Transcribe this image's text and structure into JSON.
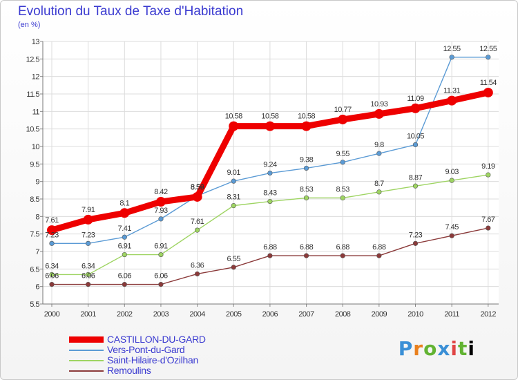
{
  "chart_data": {
    "type": "line",
    "title": "Evolution du Taux de Taxe d'Habitation",
    "ylabel": "(en %)",
    "xlabel": "",
    "x": [
      "2000",
      "2001",
      "2002",
      "2003",
      "2004",
      "2005",
      "2006",
      "2007",
      "2008",
      "2009",
      "2010",
      "2011",
      "2012"
    ],
    "ylim": [
      5.5,
      13
    ],
    "yticks": [
      "5.5",
      "6",
      "6.5",
      "7",
      "7.5",
      "8",
      "8.5",
      "9",
      "9.5",
      "10",
      "10.5",
      "11",
      "11.5",
      "12",
      "12.5",
      "13"
    ],
    "grid": true,
    "legend_position": "bottom-left",
    "series": [
      {
        "name": "CASTILLON-DU-GARD",
        "color": "#ee0000",
        "values": [
          7.61,
          7.91,
          8.1,
          8.42,
          8.56,
          10.58,
          10.58,
          10.58,
          10.77,
          10.93,
          11.09,
          11.31,
          11.54
        ],
        "labels": [
          "7.61",
          "7.91",
          "8.1",
          "8.42",
          "8.56",
          "10.58",
          "10.58",
          "10.58",
          "10.77",
          "10.93",
          "11.09",
          "11.31",
          "11.54"
        ]
      },
      {
        "name": "Vers-Pont-du-Gard",
        "color": "#5b9bd5",
        "values": [
          7.23,
          7.23,
          7.41,
          7.93,
          8.59,
          9.01,
          9.24,
          9.38,
          9.55,
          9.8,
          10.05,
          12.55,
          12.55
        ],
        "labels": [
          "7.23",
          "7.23",
          "7.41",
          "7.93",
          "8.59",
          "9.01",
          "9.24",
          "9.38",
          "9.55",
          "9.8",
          "10.05",
          "12.55",
          "12.55"
        ]
      },
      {
        "name": "Saint-Hilaire-d'Ozilhan",
        "color": "#9ed462",
        "values": [
          6.34,
          6.34,
          6.91,
          6.91,
          7.61,
          8.31,
          8.43,
          8.53,
          8.53,
          8.7,
          8.87,
          9.03,
          9.19
        ],
        "labels": [
          "6.34",
          "6.34",
          "6.91",
          "6.91",
          "7.61",
          "8.31",
          "8.43",
          "8.53",
          "8.53",
          "8.7",
          "8.87",
          "9.03",
          "9.19"
        ]
      },
      {
        "name": "Remoulins",
        "color": "#8b3a3a",
        "values": [
          6.06,
          6.06,
          6.06,
          6.06,
          6.36,
          6.55,
          6.88,
          6.88,
          6.88,
          6.88,
          7.23,
          7.45,
          7.67
        ],
        "labels": [
          "6.06",
          "6.06",
          "6.06",
          "6.06",
          "6.36",
          "6.55",
          "6.88",
          "6.88",
          "6.88",
          "6.88",
          "7.23",
          "7.45",
          "7.67"
        ]
      }
    ]
  },
  "brand_letters": [
    "P",
    "r",
    "o",
    "x",
    "i",
    "t",
    "i"
  ]
}
